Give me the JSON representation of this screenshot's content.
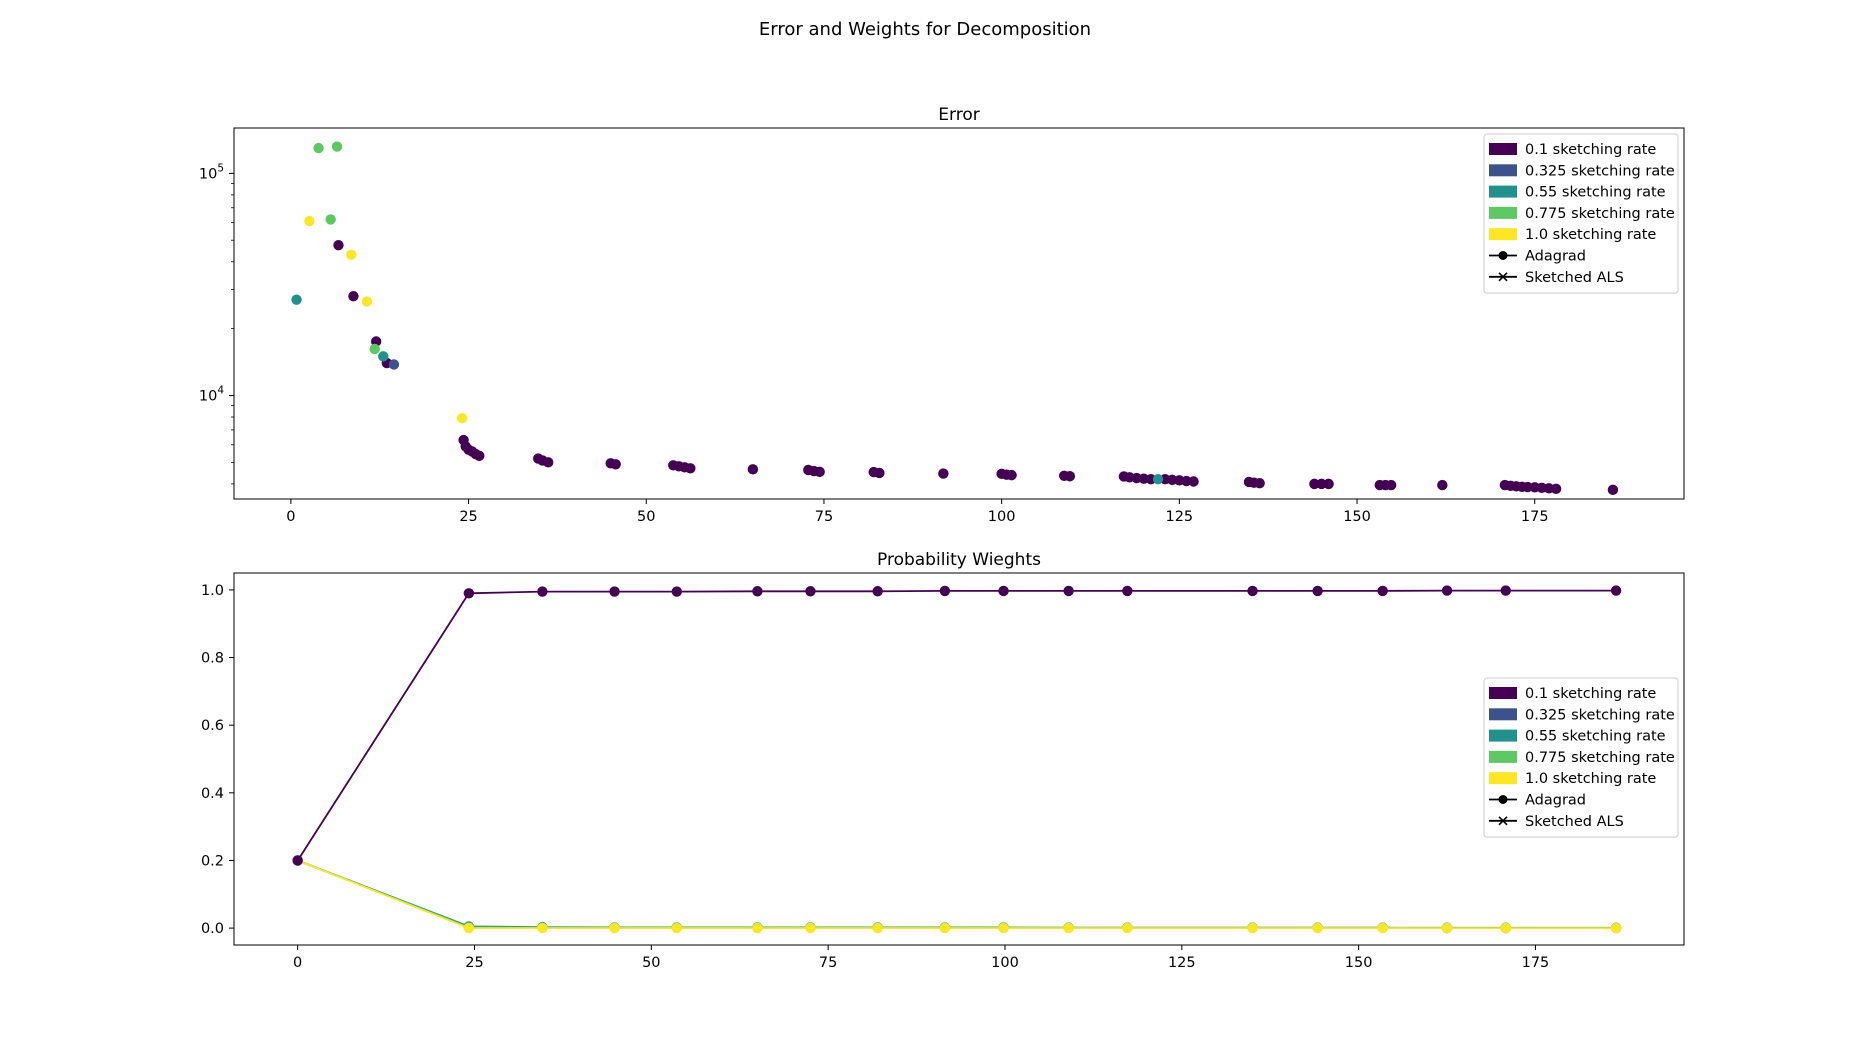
{
  "figure": {
    "suptitle": "Error and Weights for Decomposition"
  },
  "legend": {
    "entries": [
      {
        "label": "0.1 sketching rate",
        "color": "#440154",
        "kind": "patch"
      },
      {
        "label": "0.325 sketching rate",
        "color": "#3b528b",
        "kind": "patch"
      },
      {
        "label": "0.55 sketching rate",
        "color": "#21918c",
        "kind": "patch"
      },
      {
        "label": "0.775 sketching rate",
        "color": "#5ec962",
        "kind": "patch"
      },
      {
        "label": "1.0 sketching rate",
        "color": "#fde725",
        "kind": "patch"
      },
      {
        "label": "Adagrad",
        "color": "#000000",
        "kind": "line-dot"
      },
      {
        "label": "Sketched ALS",
        "color": "#000000",
        "kind": "line-x"
      }
    ]
  },
  "chart_data": [
    {
      "type": "scatter",
      "title": "Error",
      "xlabel": "",
      "ylabel": "",
      "yscale": "log",
      "xlim": [
        -8,
        196
      ],
      "ylim": [
        3420,
        160000
      ],
      "xticks": [
        0,
        25,
        50,
        75,
        100,
        125,
        150,
        175
      ],
      "yticks": [
        {
          "value": 10000,
          "base": "10",
          "exp": "4"
        },
        {
          "value": 100000,
          "base": "10",
          "exp": "5"
        }
      ],
      "legend_position": "upper right",
      "grid": false,
      "series": [
        {
          "name": "0.1 sketching rate",
          "color": "#440154",
          "points": [
            [
              6.7,
              47500
            ],
            [
              8.8,
              28000
            ],
            [
              12.0,
              17500
            ],
            [
              13.5,
              14000
            ],
            [
              24.3,
              6300
            ],
            [
              24.6,
              5900
            ],
            [
              25.0,
              5700
            ],
            [
              25.5,
              5600
            ],
            [
              26.0,
              5450
            ],
            [
              26.5,
              5350
            ],
            [
              34.8,
              5200
            ],
            [
              35.4,
              5100
            ],
            [
              36.2,
              5000
            ],
            [
              45.0,
              4950
            ],
            [
              45.7,
              4900
            ],
            [
              53.8,
              4850
            ],
            [
              54.6,
              4800
            ],
            [
              55.4,
              4750
            ],
            [
              56.2,
              4700
            ],
            [
              65.0,
              4650
            ],
            [
              72.8,
              4620
            ],
            [
              73.6,
              4570
            ],
            [
              74.4,
              4530
            ],
            [
              82.0,
              4520
            ],
            [
              82.8,
              4480
            ],
            [
              91.8,
              4450
            ],
            [
              100.0,
              4440
            ],
            [
              100.7,
              4400
            ],
            [
              101.4,
              4380
            ],
            [
              108.8,
              4350
            ],
            [
              109.6,
              4330
            ],
            [
              117.2,
              4320
            ],
            [
              118.0,
              4280
            ],
            [
              119.0,
              4250
            ],
            [
              120.0,
              4220
            ],
            [
              121.0,
              4200
            ],
            [
              123.0,
              4200
            ],
            [
              124.0,
              4170
            ],
            [
              125.0,
              4150
            ],
            [
              126.0,
              4120
            ],
            [
              127.0,
              4100
            ],
            [
              134.8,
              4080
            ],
            [
              135.5,
              4050
            ],
            [
              136.3,
              4030
            ],
            [
              144.0,
              4000
            ],
            [
              145.0,
              4000
            ],
            [
              146.0,
              4000
            ],
            [
              153.2,
              3950
            ],
            [
              154.0,
              3950
            ],
            [
              154.8,
              3950
            ],
            [
              162.0,
              3950
            ],
            [
              170.8,
              3950
            ],
            [
              171.6,
              3920
            ],
            [
              172.4,
              3900
            ],
            [
              173.2,
              3880
            ],
            [
              174.0,
              3870
            ],
            [
              175.0,
              3860
            ],
            [
              176.0,
              3840
            ],
            [
              177.0,
              3820
            ],
            [
              178.0,
              3800
            ],
            [
              186.0,
              3760
            ]
          ]
        },
        {
          "name": "0.325 sketching rate",
          "color": "#3b528b",
          "points": [
            [
              14.5,
              13800
            ]
          ]
        },
        {
          "name": "0.55 sketching rate",
          "color": "#21918c",
          "points": [
            [
              0.8,
              27000
            ],
            [
              13.0,
              15000
            ],
            [
              122.0,
              4200
            ]
          ]
        },
        {
          "name": "0.775 sketching rate",
          "color": "#5ec962",
          "points": [
            [
              3.9,
              130000
            ],
            [
              6.5,
              132000
            ],
            [
              5.6,
              62000
            ],
            [
              11.8,
              16200
            ]
          ]
        },
        {
          "name": "1.0 sketching rate",
          "color": "#fde725",
          "points": [
            [
              2.6,
              61000
            ],
            [
              8.5,
              43000
            ],
            [
              10.7,
              26500
            ],
            [
              24.1,
              7900
            ]
          ]
        }
      ]
    },
    {
      "type": "line",
      "title": "Probability Wieghts",
      "xlabel": "",
      "ylabel": "",
      "xlim": [
        -9,
        196
      ],
      "ylim": [
        -0.05,
        1.05
      ],
      "xticks": [
        0,
        25,
        50,
        75,
        100,
        125,
        150,
        175
      ],
      "yticks": [
        0.0,
        0.2,
        0.4,
        0.6,
        0.8,
        1.0
      ],
      "legend_position": "center right",
      "grid": false,
      "x": [
        0,
        24.2,
        34.6,
        44.8,
        53.6,
        65,
        72.5,
        82,
        91.5,
        99.8,
        109,
        117.3,
        135,
        144.2,
        153.4,
        162.5,
        170.8,
        186.4
      ],
      "series": [
        {
          "name": "0.1 sketching rate",
          "color": "#440154",
          "values": [
            0.2,
            0.99,
            0.995,
            0.995,
            0.995,
            0.996,
            0.996,
            0.996,
            0.997,
            0.997,
            0.997,
            0.997,
            0.997,
            0.997,
            0.997,
            0.998,
            0.998,
            0.998
          ]
        },
        {
          "name": "0.325 sketching rate",
          "color": "#3b528b",
          "values": [
            0.2,
            0.003,
            0.001,
            0.001,
            0.001,
            0.001,
            0.001,
            0.001,
            0.001,
            0.001,
            0.001,
            0.001,
            0.001,
            0.001,
            0.001,
            0.0,
            0.0,
            0.0
          ]
        },
        {
          "name": "0.55 sketching rate",
          "color": "#21918c",
          "values": [
            0.2,
            0.005,
            0.003,
            0.002,
            0.002,
            0.002,
            0.002,
            0.002,
            0.002,
            0.002,
            0.001,
            0.001,
            0.001,
            0.001,
            0.001,
            0.001,
            0.001,
            0.001
          ]
        },
        {
          "name": "0.775 sketching rate",
          "color": "#5ec962",
          "values": [
            0.2,
            0.002,
            0.001,
            0.001,
            0.001,
            0.001,
            0.001,
            0.001,
            0.001,
            0.001,
            0.001,
            0.001,
            0.001,
            0.001,
            0.001,
            0.0,
            0.0,
            0.0
          ]
        },
        {
          "name": "1.0 sketching rate",
          "color": "#fde725",
          "values": [
            0.2,
            0.0,
            0.0,
            0.0,
            0.0,
            0.0,
            0.0,
            0.0,
            0.0,
            0.0,
            0.0,
            0.0,
            0.0,
            0.0,
            0.0,
            0.0,
            0.0,
            0.0
          ]
        }
      ]
    }
  ]
}
